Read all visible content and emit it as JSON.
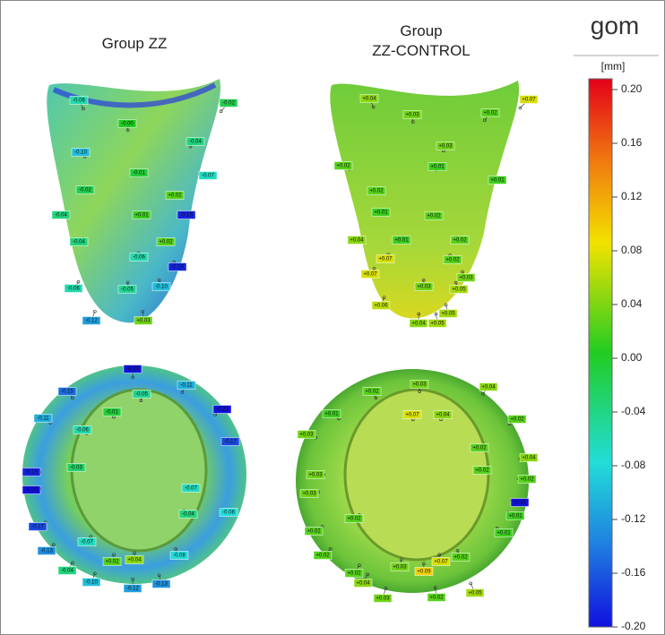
{
  "titles": [
    [
      "Group ZZ"
    ],
    [
      "Group",
      "ZZ-CONTROL"
    ]
  ],
  "logo": "gom",
  "colorbar": {
    "unit": "[mm]",
    "lim": [
      -0.2,
      0.2
    ],
    "ticks": [
      {
        "value": 0.2,
        "label": "0.20"
      },
      {
        "value": 0.16,
        "label": "0.16"
      },
      {
        "value": 0.12,
        "label": "0.12"
      },
      {
        "value": 0.08,
        "label": "0.08"
      },
      {
        "value": 0.04,
        "label": "0.04"
      },
      {
        "value": 0,
        "label": "0.00"
      },
      {
        "value": -0.04,
        "label": "-0.04"
      },
      {
        "value": -0.08,
        "label": "-0.08"
      },
      {
        "value": -0.12,
        "label": "-0.12"
      },
      {
        "value": -0.16,
        "label": "-0.16"
      },
      {
        "value": -0.2,
        "label": "-0.20"
      }
    ]
  },
  "panels": [
    {
      "labels": [
        "-0.06",
        "-0.02",
        "-0.00",
        "-0.04",
        "-0.10",
        "-0.07",
        "-0.01",
        "-0.02",
        "+0.02",
        "-0.04",
        "+0.01",
        "-0.19",
        "-0.04",
        "+0.02",
        "-0.06",
        "-0.19",
        "-0.06",
        "-0.05",
        "-0.10",
        "-0.12",
        "+0.03"
      ]
    },
    {
      "labels": [
        "+0.04",
        "+0.07",
        "+0.03",
        "+0.02",
        "+0.03",
        "+0.02",
        "+0.01",
        "+0.01",
        "+0.02",
        "+0.01",
        "+0.02",
        "+0.04",
        "+0.01",
        "+0.02",
        "+0.07",
        "+0.02",
        "+0.07",
        "+0.03",
        "+0.03",
        "+0.05",
        "+0.06",
        "+0.05",
        "+0.04",
        "+0.05"
      ]
    },
    {
      "labels": [
        "-0.20",
        "-0.11",
        "-0.15",
        "-0.05",
        "-0.21",
        "-0.11",
        "-0.01",
        "-0.17",
        "-0.06",
        "-0.19",
        "-0.20",
        "-0.03",
        "-0.07",
        "-0.08",
        "-0.17",
        "-0.04",
        "-0.13",
        "-0.07",
        "+0.04",
        "+0.02",
        "-0.08",
        "-0.04",
        "-0.10",
        "-0.12",
        "-0.13"
      ]
    },
    {
      "labels": [
        "+0.04",
        "+0.02",
        "+0.03",
        "+0.01",
        "+0.07",
        "+0.04",
        "+0.02",
        "+0.03",
        "+0.02",
        "+0.04",
        "+0.03",
        "+0.02",
        "+0.02",
        "-0.45",
        "+0.03",
        "+0.02",
        "+0.01",
        "+0.02",
        "+0.01",
        "+0.02",
        "+0.07",
        "+0.02",
        "+0.03",
        "+0.09",
        "+0.02",
        "+0.04",
        "+0.05",
        "+0.03",
        "+0.02"
      ]
    }
  ]
}
